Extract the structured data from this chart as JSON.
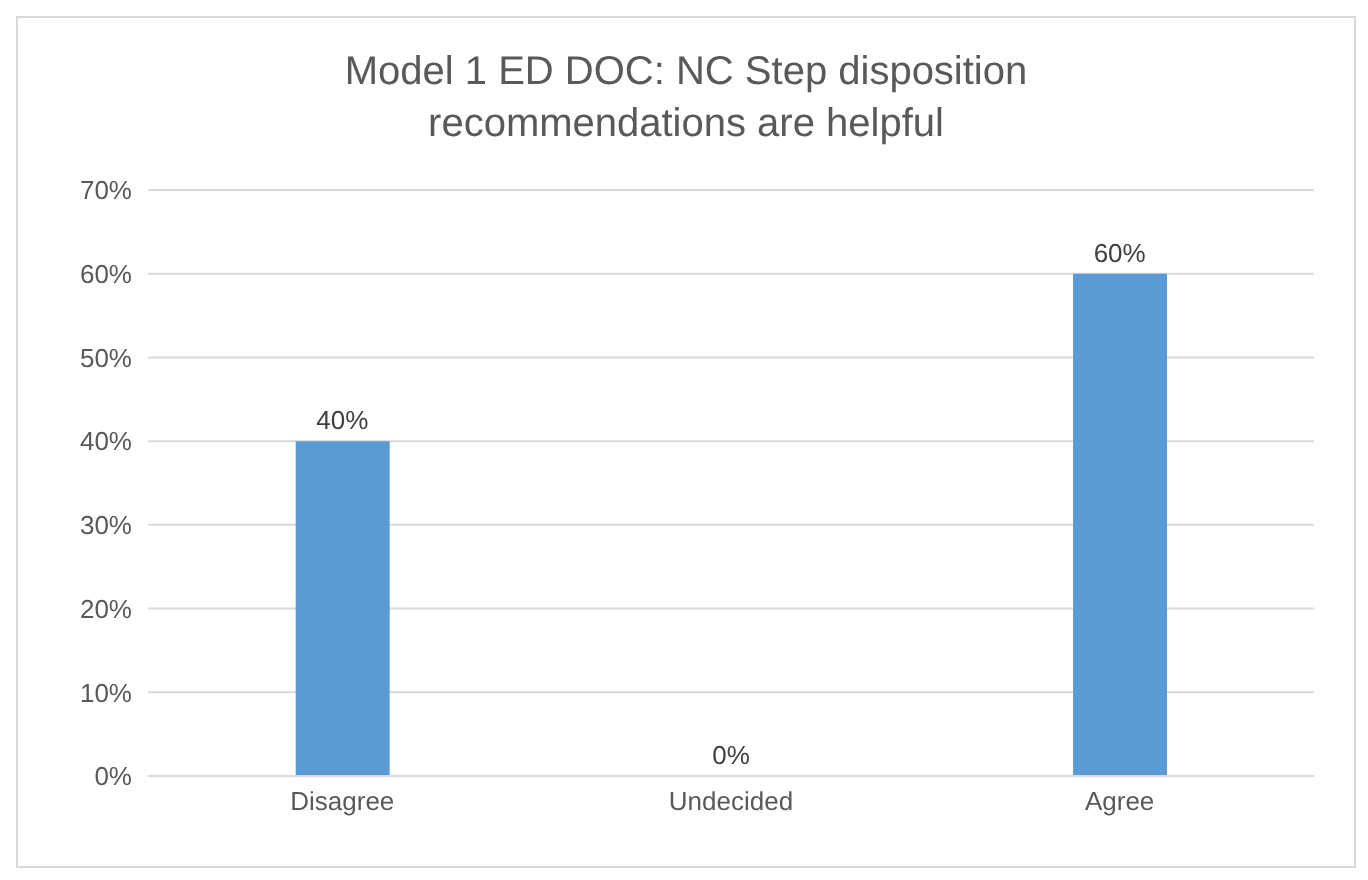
{
  "chart_data": {
    "type": "bar",
    "title": "Model 1 ED DOC: NC Step disposition recommendations are helpful",
    "categories": [
      "Disagree",
      "Undecided",
      "Agree"
    ],
    "values": [
      40,
      0,
      60
    ],
    "value_labels": [
      "40%",
      "0%",
      "60%"
    ],
    "color": "#5b9bd5",
    "ylim": [
      0,
      70
    ],
    "yticks": [
      {
        "value": 0,
        "label": "0%"
      },
      {
        "value": 10,
        "label": "10%"
      },
      {
        "value": 20,
        "label": "20%"
      },
      {
        "value": 30,
        "label": "30%"
      },
      {
        "value": 40,
        "label": "40%"
      },
      {
        "value": 50,
        "label": "50%"
      },
      {
        "value": 60,
        "label": "60%"
      },
      {
        "value": 70,
        "label": "70%"
      }
    ],
    "grid": "y"
  }
}
